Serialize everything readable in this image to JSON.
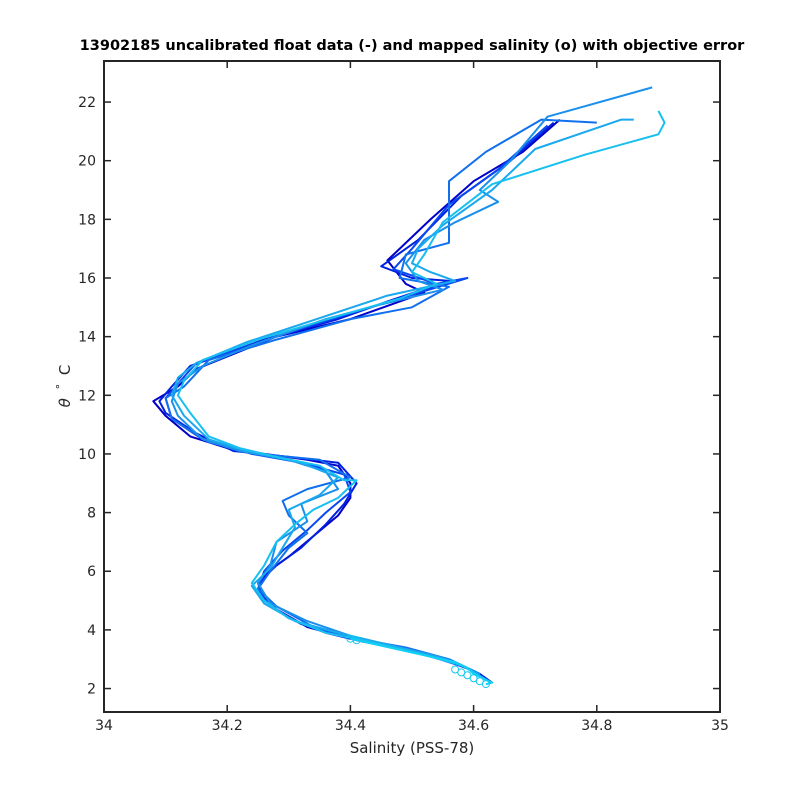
{
  "chart_data": {
    "type": "line",
    "title": "13902185 uncalibrated float data (-) and mapped salinity (o) with objective error",
    "xlabel": "Salinity (PSS-78)",
    "ylabel_symbol": "θ",
    "ylabel_degree": "°",
    "ylabel_unit": "C",
    "xlim": [
      34.0,
      35.0
    ],
    "ylim": [
      1.2,
      23.4
    ],
    "xticks": [
      "34",
      "34.2",
      "34.4",
      "34.6",
      "34.8",
      "35"
    ],
    "xtick_values": [
      34.0,
      34.2,
      34.4,
      34.6,
      34.8,
      35.0
    ],
    "yticks": [
      "2",
      "4",
      "6",
      "8",
      "10",
      "12",
      "14",
      "16",
      "18",
      "20",
      "22"
    ],
    "ytick_values": [
      2,
      4,
      6,
      8,
      10,
      12,
      14,
      16,
      18,
      20,
      22
    ],
    "grid": false,
    "colors": [
      "#0000c8",
      "#0020e0",
      "#0848f0",
      "#1070ee",
      "#1a90ec",
      "#1aa8ee",
      "#18c0f0",
      "#10d0f4"
    ],
    "series": [
      {
        "values": [
          [
            34.74,
            21.4
          ],
          [
            34.68,
            20.3
          ],
          [
            34.6,
            19.3
          ],
          [
            34.53,
            18.0
          ],
          [
            34.46,
            16.6
          ],
          [
            34.49,
            15.8
          ],
          [
            34.52,
            15.5
          ],
          [
            34.4,
            14.6
          ],
          [
            34.28,
            14.0
          ],
          [
            34.15,
            12.9
          ],
          [
            34.12,
            12.3
          ],
          [
            34.08,
            11.8
          ],
          [
            34.1,
            11.3
          ],
          [
            34.14,
            10.6
          ],
          [
            34.2,
            10.2
          ],
          [
            34.26,
            10.0
          ],
          [
            34.33,
            9.8
          ],
          [
            34.38,
            9.6
          ],
          [
            34.4,
            9.0
          ],
          [
            34.4,
            8.5
          ],
          [
            34.38,
            7.9
          ],
          [
            34.34,
            7.2
          ],
          [
            34.3,
            6.5
          ],
          [
            34.26,
            5.9
          ],
          [
            34.25,
            5.3
          ],
          [
            34.28,
            4.7
          ],
          [
            34.33,
            4.1
          ],
          [
            34.4,
            3.7
          ],
          [
            34.48,
            3.4
          ],
          [
            34.55,
            3.0
          ],
          [
            34.6,
            2.6
          ],
          [
            34.63,
            2.2
          ]
        ]
      },
      {
        "values": [
          [
            34.73,
            21.3
          ],
          [
            34.66,
            20.0
          ],
          [
            34.58,
            18.8
          ],
          [
            34.51,
            17.3
          ],
          [
            34.45,
            16.4
          ],
          [
            34.5,
            16.0
          ],
          [
            34.56,
            15.9
          ],
          [
            34.46,
            15.2
          ],
          [
            34.38,
            14.6
          ],
          [
            34.26,
            13.9
          ],
          [
            34.14,
            13.0
          ],
          [
            34.11,
            12.3
          ],
          [
            34.09,
            11.8
          ],
          [
            34.1,
            11.4
          ],
          [
            34.15,
            10.7
          ],
          [
            34.21,
            10.1
          ],
          [
            34.3,
            9.9
          ],
          [
            34.38,
            9.7
          ],
          [
            34.41,
            9.0
          ],
          [
            34.39,
            8.3
          ],
          [
            34.36,
            7.6
          ],
          [
            34.32,
            6.8
          ],
          [
            34.28,
            6.2
          ],
          [
            34.25,
            5.6
          ],
          [
            34.26,
            5.0
          ],
          [
            34.3,
            4.4
          ],
          [
            34.36,
            3.9
          ],
          [
            34.42,
            3.6
          ],
          [
            34.5,
            3.3
          ],
          [
            34.57,
            2.9
          ],
          [
            34.61,
            2.5
          ],
          [
            34.63,
            2.2
          ]
        ]
      },
      {
        "values": [
          [
            34.72,
            21.2
          ],
          [
            34.64,
            19.7
          ],
          [
            34.56,
            18.5
          ],
          [
            34.5,
            17.0
          ],
          [
            34.47,
            16.3
          ],
          [
            34.54,
            15.8
          ],
          [
            34.59,
            16.0
          ],
          [
            34.48,
            15.3
          ],
          [
            34.37,
            14.6
          ],
          [
            34.25,
            13.8
          ],
          [
            34.15,
            13.1
          ],
          [
            34.12,
            12.4
          ],
          [
            34.1,
            11.9
          ],
          [
            34.11,
            11.2
          ],
          [
            34.16,
            10.5
          ],
          [
            34.24,
            10.0
          ],
          [
            34.32,
            9.7
          ],
          [
            34.39,
            9.3
          ],
          [
            34.4,
            8.7
          ],
          [
            34.36,
            8.0
          ],
          [
            34.33,
            7.4
          ],
          [
            34.29,
            6.7
          ],
          [
            34.26,
            6.0
          ],
          [
            34.25,
            5.4
          ],
          [
            34.27,
            4.8
          ],
          [
            34.32,
            4.2
          ],
          [
            34.39,
            3.8
          ],
          [
            34.46,
            3.5
          ],
          [
            34.53,
            3.1
          ],
          [
            34.59,
            2.7
          ],
          [
            34.62,
            2.3
          ]
        ]
      },
      {
        "values": [
          [
            34.8,
            21.3
          ],
          [
            34.71,
            21.4
          ],
          [
            34.62,
            20.3
          ],
          [
            34.56,
            19.3
          ],
          [
            34.56,
            17.2
          ],
          [
            34.49,
            16.8
          ],
          [
            34.48,
            16.0
          ],
          [
            34.56,
            15.7
          ],
          [
            34.5,
            15.0
          ],
          [
            34.4,
            14.6
          ],
          [
            34.28,
            13.9
          ],
          [
            34.17,
            13.2
          ],
          [
            34.13,
            12.3
          ],
          [
            34.1,
            11.9
          ],
          [
            34.11,
            11.2
          ],
          [
            34.17,
            10.4
          ],
          [
            34.25,
            10.0
          ],
          [
            34.35,
            9.8
          ],
          [
            34.4,
            9.2
          ],
          [
            34.33,
            8.8
          ],
          [
            34.29,
            8.4
          ],
          [
            34.3,
            7.9
          ],
          [
            34.33,
            7.3
          ],
          [
            34.3,
            6.8
          ],
          [
            34.27,
            6.0
          ],
          [
            34.25,
            5.4
          ],
          [
            34.28,
            4.8
          ],
          [
            34.34,
            4.1
          ],
          [
            34.41,
            3.7
          ],
          [
            34.49,
            3.4
          ],
          [
            34.56,
            3.0
          ],
          [
            34.61,
            2.5
          ]
        ]
      },
      {
        "values": [
          [
            34.89,
            22.5
          ],
          [
            34.72,
            21.5
          ],
          [
            34.66,
            20.0
          ],
          [
            34.61,
            19.0
          ],
          [
            34.64,
            18.6
          ],
          [
            34.57,
            17.9
          ],
          [
            34.52,
            17.3
          ],
          [
            34.49,
            16.5
          ],
          [
            34.51,
            15.9
          ],
          [
            34.55,
            15.6
          ],
          [
            34.45,
            15.1
          ],
          [
            34.36,
            14.6
          ],
          [
            34.24,
            13.7
          ],
          [
            34.16,
            13.0
          ],
          [
            34.12,
            12.4
          ],
          [
            34.11,
            11.8
          ],
          [
            34.12,
            11.3
          ],
          [
            34.16,
            10.5
          ],
          [
            34.22,
            10.1
          ],
          [
            34.3,
            9.8
          ],
          [
            34.36,
            9.4
          ],
          [
            34.38,
            8.8
          ],
          [
            34.32,
            8.3
          ],
          [
            34.33,
            7.7
          ],
          [
            34.28,
            7.0
          ],
          [
            34.27,
            6.2
          ],
          [
            34.25,
            5.6
          ],
          [
            34.27,
            4.9
          ],
          [
            34.33,
            4.3
          ],
          [
            34.4,
            3.8
          ],
          [
            34.48,
            3.4
          ],
          [
            34.56,
            3.0
          ],
          [
            34.61,
            2.5
          ]
        ]
      },
      {
        "values": [
          [
            34.86,
            21.4
          ],
          [
            34.84,
            21.4
          ],
          [
            34.7,
            20.4
          ],
          [
            34.63,
            19.0
          ],
          [
            34.55,
            17.8
          ],
          [
            34.51,
            17.0
          ],
          [
            34.5,
            16.5
          ],
          [
            34.53,
            16.2
          ],
          [
            34.57,
            15.9
          ],
          [
            34.46,
            15.4
          ],
          [
            34.36,
            14.7
          ],
          [
            34.23,
            13.8
          ],
          [
            34.15,
            13.1
          ],
          [
            34.12,
            12.6
          ],
          [
            34.11,
            12.0
          ],
          [
            34.13,
            11.3
          ],
          [
            34.17,
            10.5
          ],
          [
            34.23,
            10.1
          ],
          [
            34.32,
            9.7
          ],
          [
            34.38,
            9.2
          ],
          [
            34.35,
            8.6
          ],
          [
            34.3,
            8.1
          ],
          [
            34.31,
            7.5
          ],
          [
            34.29,
            6.8
          ],
          [
            34.27,
            6.1
          ],
          [
            34.24,
            5.5
          ],
          [
            34.26,
            4.9
          ],
          [
            34.31,
            4.3
          ],
          [
            34.38,
            3.9
          ],
          [
            34.46,
            3.5
          ],
          [
            34.54,
            3.1
          ],
          [
            34.59,
            2.7
          ],
          [
            34.62,
            2.3
          ]
        ]
      },
      {
        "values": [
          [
            34.9,
            21.7
          ],
          [
            34.91,
            21.3
          ],
          [
            34.9,
            20.9
          ],
          [
            34.78,
            20.2
          ],
          [
            34.63,
            19.2
          ],
          [
            34.55,
            17.9
          ],
          [
            34.52,
            16.8
          ],
          [
            34.5,
            16.2
          ],
          [
            34.54,
            15.8
          ],
          [
            34.48,
            15.3
          ],
          [
            34.38,
            14.7
          ],
          [
            34.25,
            13.9
          ],
          [
            34.16,
            13.2
          ],
          [
            34.13,
            12.5
          ],
          [
            34.12,
            12.0
          ],
          [
            34.14,
            11.4
          ],
          [
            34.17,
            10.6
          ],
          [
            34.22,
            10.2
          ],
          [
            34.28,
            9.9
          ],
          [
            34.35,
            9.6
          ],
          [
            34.39,
            9.1
          ],
          [
            34.41,
            9.1
          ],
          [
            34.38,
            8.5
          ],
          [
            34.34,
            8.1
          ],
          [
            34.31,
            7.6
          ],
          [
            34.28,
            7.0
          ],
          [
            34.26,
            6.2
          ],
          [
            34.24,
            5.6
          ],
          [
            34.26,
            5.0
          ],
          [
            34.3,
            4.4
          ],
          [
            34.36,
            3.9
          ],
          [
            34.43,
            3.6
          ],
          [
            34.51,
            3.2
          ],
          [
            34.58,
            2.8
          ],
          [
            34.62,
            2.3
          ]
        ]
      },
      {
        "values": [
          [
            34.62,
            2.15
          ],
          [
            34.63,
            2.2
          ],
          [
            34.62,
            2.3
          ],
          [
            34.6,
            2.5
          ],
          [
            34.59,
            2.7
          ],
          [
            34.57,
            2.9
          ],
          [
            34.41,
            3.65
          ],
          [
            34.4,
            3.7
          ]
        ]
      }
    ]
  }
}
